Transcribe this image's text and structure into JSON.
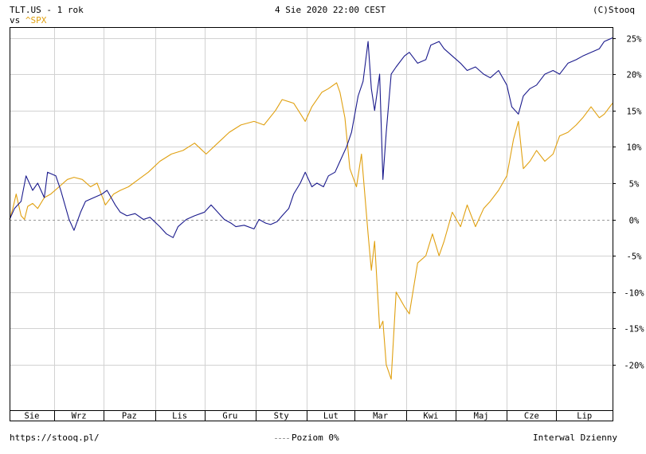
{
  "header": {
    "symbol_line": "TLT.US - 1 rok",
    "vs_prefix": "vs ",
    "compare_symbol": "^SPX",
    "datetime": "4 Sie 2020 22:00 CEST",
    "copyright": "(C)Stooq"
  },
  "footer": {
    "url": "https://stooq.pl/",
    "zero_legend": "Poziom 0%",
    "interval": "Interwal Dzienny"
  },
  "colors": {
    "tlt": "#1a1a8c",
    "spx": "#e0a010",
    "grid": "#d2d2d2",
    "zero": "#999999"
  },
  "chart_data": {
    "type": "line",
    "y_unit": "%",
    "ylim": [
      -22,
      26
    ],
    "y_ticks": [
      25,
      20,
      15,
      10,
      5,
      0,
      -5,
      -10,
      -15,
      -20
    ],
    "x_range": [
      "2019-08-05",
      "2020-08-04"
    ],
    "months": [
      {
        "label": "Sie",
        "start": "2019-08-01"
      },
      {
        "label": "Wrz",
        "start": "2019-09-01"
      },
      {
        "label": "Paz",
        "start": "2019-10-01"
      },
      {
        "label": "Lis",
        "start": "2019-11-01"
      },
      {
        "label": "Gru",
        "start": "2019-12-01"
      },
      {
        "label": "Sty",
        "start": "2020-01-01"
      },
      {
        "label": "Lut",
        "start": "2020-02-01"
      },
      {
        "label": "Mar",
        "start": "2020-03-01"
      },
      {
        "label": "Kwi",
        "start": "2020-04-01"
      },
      {
        "label": "Maj",
        "start": "2020-05-01"
      },
      {
        "label": "Cze",
        "start": "2020-06-01"
      },
      {
        "label": "Lip",
        "start": "2020-07-01"
      }
    ],
    "series": [
      {
        "name": "TLT.US",
        "points": [
          [
            "2019-08-05",
            0
          ],
          [
            "2019-08-08",
            1.5
          ],
          [
            "2019-08-12",
            2.5
          ],
          [
            "2019-08-15",
            6
          ],
          [
            "2019-08-19",
            4
          ],
          [
            "2019-08-22",
            5
          ],
          [
            "2019-08-26",
            3
          ],
          [
            "2019-08-28",
            6.5
          ],
          [
            "2019-09-02",
            6
          ],
          [
            "2019-09-05",
            4
          ],
          [
            "2019-09-10",
            0
          ],
          [
            "2019-09-13",
            -1.5
          ],
          [
            "2019-09-17",
            1
          ],
          [
            "2019-09-20",
            2.5
          ],
          [
            "2019-09-25",
            3
          ],
          [
            "2019-09-30",
            3.5
          ],
          [
            "2019-10-03",
            4
          ],
          [
            "2019-10-08",
            2
          ],
          [
            "2019-10-11",
            1
          ],
          [
            "2019-10-15",
            0.5
          ],
          [
            "2019-10-20",
            0.8
          ],
          [
            "2019-10-25",
            0
          ],
          [
            "2019-10-29",
            0.3
          ],
          [
            "2019-11-04",
            -1
          ],
          [
            "2019-11-08",
            -2
          ],
          [
            "2019-11-12",
            -2.5
          ],
          [
            "2019-11-15",
            -1
          ],
          [
            "2019-11-20",
            0
          ],
          [
            "2019-11-25",
            0.5
          ],
          [
            "2019-12-01",
            1
          ],
          [
            "2019-12-05",
            2
          ],
          [
            "2019-12-09",
            1
          ],
          [
            "2019-12-13",
            0
          ],
          [
            "2019-12-17",
            -0.5
          ],
          [
            "2019-12-20",
            -1
          ],
          [
            "2019-12-25",
            -0.8
          ],
          [
            "2019-12-31",
            -1.3
          ],
          [
            "2020-01-03",
            0
          ],
          [
            "2020-01-07",
            -0.5
          ],
          [
            "2020-01-10",
            -0.7
          ],
          [
            "2020-01-14",
            -0.3
          ],
          [
            "2020-01-17",
            0.5
          ],
          [
            "2020-01-21",
            1.5
          ],
          [
            "2020-01-24",
            3.5
          ],
          [
            "2020-01-28",
            5
          ],
          [
            "2020-01-31",
            6.5
          ],
          [
            "2020-02-04",
            4.5
          ],
          [
            "2020-02-07",
            5
          ],
          [
            "2020-02-11",
            4.5
          ],
          [
            "2020-02-14",
            6
          ],
          [
            "2020-02-18",
            6.5
          ],
          [
            "2020-02-21",
            8
          ],
          [
            "2020-02-25",
            10
          ],
          [
            "2020-02-28",
            12
          ],
          [
            "2020-03-03",
            17
          ],
          [
            "2020-03-06",
            19
          ],
          [
            "2020-03-09",
            24.5
          ],
          [
            "2020-03-11",
            18
          ],
          [
            "2020-03-13",
            15
          ],
          [
            "2020-03-16",
            20
          ],
          [
            "2020-03-18",
            5.5
          ],
          [
            "2020-03-20",
            12
          ],
          [
            "2020-03-23",
            20
          ],
          [
            "2020-03-26",
            21
          ],
          [
            "2020-03-31",
            22.5
          ],
          [
            "2020-04-03",
            23
          ],
          [
            "2020-04-08",
            21.5
          ],
          [
            "2020-04-13",
            22
          ],
          [
            "2020-04-16",
            24
          ],
          [
            "2020-04-21",
            24.5
          ],
          [
            "2020-04-24",
            23.5
          ],
          [
            "2020-04-29",
            22.5
          ],
          [
            "2020-05-04",
            21.5
          ],
          [
            "2020-05-08",
            20.5
          ],
          [
            "2020-05-13",
            21
          ],
          [
            "2020-05-18",
            20
          ],
          [
            "2020-05-22",
            19.5
          ],
          [
            "2020-05-27",
            20.5
          ],
          [
            "2020-06-01",
            18.5
          ],
          [
            "2020-06-04",
            15.5
          ],
          [
            "2020-06-08",
            14.5
          ],
          [
            "2020-06-11",
            17
          ],
          [
            "2020-06-15",
            18
          ],
          [
            "2020-06-19",
            18.5
          ],
          [
            "2020-06-24",
            20
          ],
          [
            "2020-06-29",
            20.5
          ],
          [
            "2020-07-03",
            20
          ],
          [
            "2020-07-08",
            21.5
          ],
          [
            "2020-07-13",
            22
          ],
          [
            "2020-07-17",
            22.5
          ],
          [
            "2020-07-22",
            23
          ],
          [
            "2020-07-27",
            23.5
          ],
          [
            "2020-07-30",
            24.5
          ],
          [
            "2020-08-04",
            25
          ]
        ]
      },
      {
        "name": "^SPX",
        "points": [
          [
            "2019-08-05",
            0
          ],
          [
            "2019-08-07",
            1.5
          ],
          [
            "2019-08-09",
            3.5
          ],
          [
            "2019-08-12",
            0.5
          ],
          [
            "2019-08-14",
            0
          ],
          [
            "2019-08-16",
            1.8
          ],
          [
            "2019-08-19",
            2.2
          ],
          [
            "2019-08-22",
            1.5
          ],
          [
            "2019-08-26",
            3
          ],
          [
            "2019-08-30",
            3.5
          ],
          [
            "2019-09-04",
            4.5
          ],
          [
            "2019-09-09",
            5.5
          ],
          [
            "2019-09-13",
            5.8
          ],
          [
            "2019-09-18",
            5.5
          ],
          [
            "2019-09-23",
            4.5
          ],
          [
            "2019-09-27",
            5
          ],
          [
            "2019-10-02",
            2
          ],
          [
            "2019-10-07",
            3.5
          ],
          [
            "2019-10-11",
            4
          ],
          [
            "2019-10-16",
            4.5
          ],
          [
            "2019-10-22",
            5.5
          ],
          [
            "2019-10-28",
            6.5
          ],
          [
            "2019-11-04",
            8
          ],
          [
            "2019-11-11",
            9
          ],
          [
            "2019-11-18",
            9.5
          ],
          [
            "2019-11-25",
            10.5
          ],
          [
            "2019-12-02",
            9
          ],
          [
            "2019-12-09",
            10.5
          ],
          [
            "2019-12-16",
            12
          ],
          [
            "2019-12-23",
            13
          ],
          [
            "2019-12-31",
            13.5
          ],
          [
            "2020-01-06",
            13
          ],
          [
            "2020-01-13",
            15
          ],
          [
            "2020-01-17",
            16.5
          ],
          [
            "2020-01-24",
            16
          ],
          [
            "2020-01-31",
            13.5
          ],
          [
            "2020-02-04",
            15.5
          ],
          [
            "2020-02-10",
            17.5
          ],
          [
            "2020-02-14",
            18
          ],
          [
            "2020-02-19",
            18.8
          ],
          [
            "2020-02-21",
            17.5
          ],
          [
            "2020-02-24",
            14
          ],
          [
            "2020-02-27",
            7
          ],
          [
            "2020-03-02",
            4.5
          ],
          [
            "2020-03-05",
            9
          ],
          [
            "2020-03-09",
            -2
          ],
          [
            "2020-03-11",
            -7
          ],
          [
            "2020-03-13",
            -3
          ],
          [
            "2020-03-16",
            -15
          ],
          [
            "2020-03-18",
            -14
          ],
          [
            "2020-03-20",
            -20
          ],
          [
            "2020-03-23",
            -22
          ],
          [
            "2020-03-26",
            -10
          ],
          [
            "2020-03-31",
            -12
          ],
          [
            "2020-04-03",
            -13
          ],
          [
            "2020-04-08",
            -6
          ],
          [
            "2020-04-13",
            -5
          ],
          [
            "2020-04-17",
            -2
          ],
          [
            "2020-04-21",
            -5
          ],
          [
            "2020-04-24",
            -3
          ],
          [
            "2020-04-29",
            1
          ],
          [
            "2020-05-04",
            -1
          ],
          [
            "2020-05-08",
            2
          ],
          [
            "2020-05-13",
            -1
          ],
          [
            "2020-05-18",
            1.5
          ],
          [
            "2020-05-22",
            2.5
          ],
          [
            "2020-05-27",
            4
          ],
          [
            "2020-06-01",
            6
          ],
          [
            "2020-06-05",
            11
          ],
          [
            "2020-06-08",
            13.5
          ],
          [
            "2020-06-11",
            7
          ],
          [
            "2020-06-15",
            8
          ],
          [
            "2020-06-19",
            9.5
          ],
          [
            "2020-06-24",
            8
          ],
          [
            "2020-06-29",
            9
          ],
          [
            "2020-07-03",
            11.5
          ],
          [
            "2020-07-08",
            12
          ],
          [
            "2020-07-13",
            13
          ],
          [
            "2020-07-17",
            14
          ],
          [
            "2020-07-22",
            15.5
          ],
          [
            "2020-07-27",
            14
          ],
          [
            "2020-07-30",
            14.5
          ],
          [
            "2020-08-04",
            16
          ]
        ]
      }
    ]
  }
}
